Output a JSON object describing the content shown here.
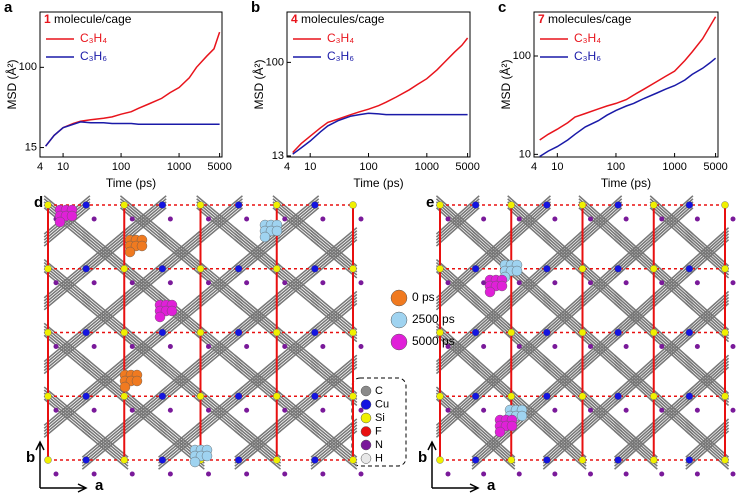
{
  "chart_data": [
    {
      "type": "line",
      "panel_label": "a",
      "label_number": "1",
      "label_text": "molecule/cage",
      "x_label": "Time (ps)",
      "y_label": "MSD (Å²)",
      "xscale": "log",
      "yscale": "log",
      "x": [
        5,
        7,
        10,
        15,
        20,
        30,
        50,
        70,
        100,
        150,
        200,
        300,
        500,
        700,
        1000,
        1500,
        2000,
        3000,
        4000,
        5000
      ],
      "series": [
        {
          "name": "C₃H₄",
          "color": "#e8141c",
          "values": [
            15.5,
            20,
            24,
            26.5,
            28,
            29,
            30,
            31,
            33,
            35,
            38,
            42,
            48,
            55,
            62,
            78,
            100,
            130,
            155,
            230
          ]
        },
        {
          "name": "C₃H₆",
          "color": "#1a1aa8",
          "values": [
            15.5,
            20,
            24,
            26,
            27.5,
            27,
            27,
            26.5,
            26.5,
            26.5,
            26,
            26,
            26,
            26,
            26,
            26,
            26,
            26,
            26,
            26
          ]
        }
      ],
      "xlim": [
        4,
        5500
      ],
      "ylim": [
        12,
        370
      ],
      "xticks": [
        4,
        10,
        100,
        1000,
        5000
      ],
      "yticks": [
        15,
        100
      ]
    },
    {
      "type": "line",
      "panel_label": "b",
      "label_number": "4",
      "label_text": "molecules/cage",
      "x_label": "Time (ps)",
      "y_label": "MSD (Å²)",
      "xscale": "log",
      "yscale": "log",
      "x": [
        5,
        7,
        10,
        15,
        20,
        30,
        50,
        70,
        100,
        150,
        200,
        300,
        500,
        700,
        1000,
        1500,
        2000,
        3000,
        4000,
        5000
      ],
      "series": [
        {
          "name": "C₃H₄",
          "color": "#e8141c",
          "values": [
            14,
            17,
            20,
            24,
            27,
            29,
            32,
            34,
            36,
            39,
            42,
            47,
            55,
            62,
            70,
            85,
            100,
            125,
            145,
            170
          ]
        },
        {
          "name": "C₃H₆",
          "color": "#1a1aa8",
          "values": [
            13.5,
            15.5,
            18,
            22,
            25,
            28,
            31,
            32,
            33,
            32.5,
            32,
            32,
            32,
            32,
            32,
            32,
            32,
            32,
            32,
            32
          ]
        }
      ],
      "xlim": [
        4,
        5500
      ],
      "ylim": [
        12.7,
        300
      ],
      "xticks": [
        4,
        10,
        100,
        1000,
        5000
      ],
      "yticks": [
        13,
        100
      ]
    },
    {
      "type": "line",
      "panel_label": "c",
      "label_number": "7",
      "label_text": "molecules/cage",
      "x_label": "Time (ps)",
      "y_label": "MSD (Å²)",
      "xscale": "log",
      "yscale": "log",
      "x": [
        5,
        7,
        10,
        15,
        20,
        30,
        50,
        70,
        100,
        150,
        200,
        300,
        500,
        700,
        1000,
        1500,
        2000,
        3000,
        4000,
        5000
      ],
      "series": [
        {
          "name": "C₃H₄",
          "color": "#e8141c",
          "values": [
            14,
            16,
            18,
            21,
            24,
            26,
            29,
            31,
            33,
            36,
            40,
            46,
            55,
            62,
            70,
            90,
            110,
            150,
            200,
            250
          ]
        },
        {
          "name": "C₃H₆",
          "color": "#1a1aa8",
          "values": [
            9.5,
            10.8,
            12,
            14,
            16,
            19,
            22,
            25,
            28,
            31,
            33,
            37,
            42,
            46,
            50,
            57,
            65,
            75,
            85,
            95
          ]
        }
      ],
      "xlim": [
        4,
        5500
      ],
      "ylim": [
        9.4,
        280
      ],
      "xticks": [
        4,
        10,
        100,
        1000,
        5000
      ],
      "yticks": [
        10,
        100
      ]
    }
  ],
  "structures": [
    {
      "panel_label": "d",
      "axis_b": "b",
      "axis_a": "a"
    },
    {
      "panel_label": "e",
      "axis_b": "b",
      "axis_a": "a"
    }
  ],
  "time_legend": [
    {
      "label": "0 ps",
      "color": "#f07a20"
    },
    {
      "label": "2500 ps",
      "color": "#9fd3f0"
    },
    {
      "label": "5000 ps",
      "color": "#e020d8"
    }
  ],
  "element_legend": [
    {
      "symbol": "C",
      "color": "#8a8a8a"
    },
    {
      "symbol": "Cu",
      "color": "#1414e0"
    },
    {
      "symbol": "Si",
      "color": "#f0f000"
    },
    {
      "symbol": "F",
      "color": "#e81010"
    },
    {
      "symbol": "N",
      "color": "#7a1a9a"
    },
    {
      "symbol": "H",
      "color": "#e8e8e8"
    }
  ]
}
